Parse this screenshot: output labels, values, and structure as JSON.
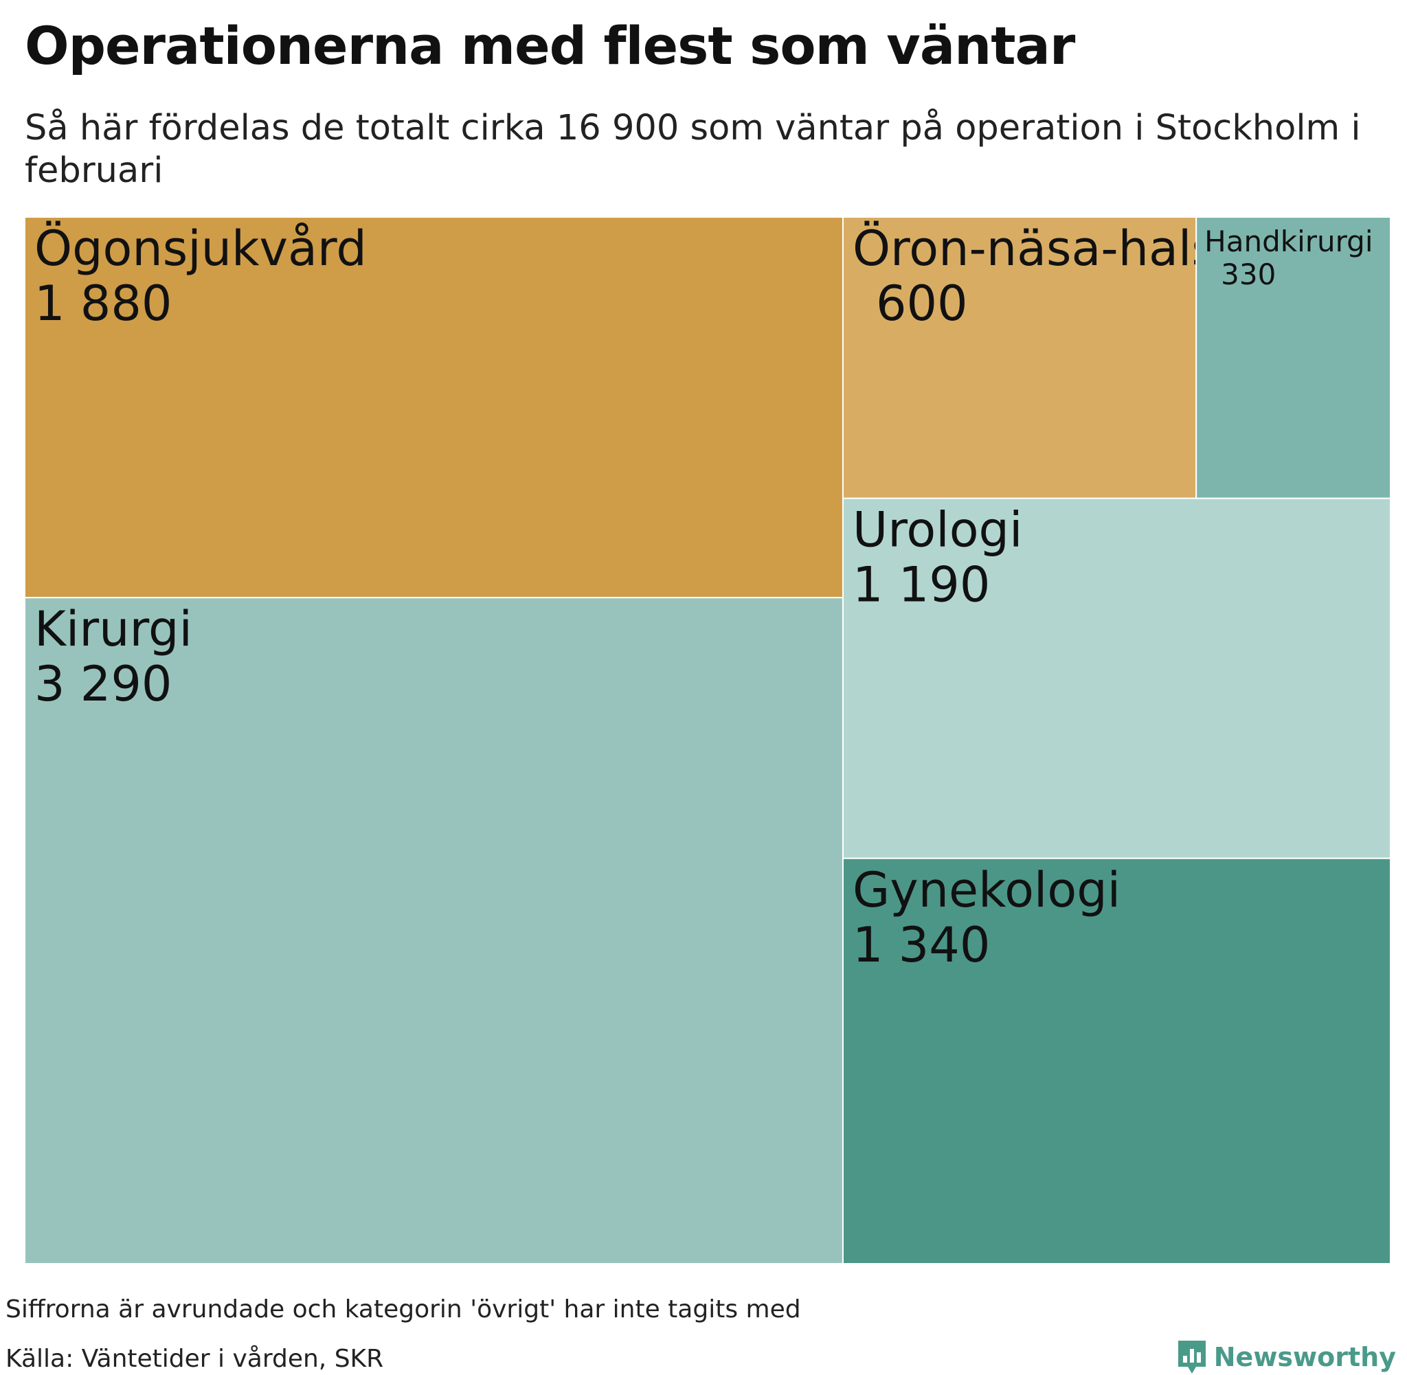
{
  "title": "Operationerna med flest som väntar",
  "subtitle": "Så här fördelas de totalt cirka 16 900 som väntar på operation i Stockholm i februari",
  "footer": {
    "note": "Siffrorna är avrundade och kategorin 'övrigt' har inte tagits med",
    "source": "Källa: Väntetider i vården, SKR",
    "brand": "Newsworthy"
  },
  "colors": {
    "ogon": "#cf9c48",
    "oron": "#d8ad63",
    "hand": "#7db5ad",
    "urologi": "#b2d6cf",
    "kirurgi": "#98c3bd",
    "gynekologi": "#4c9688",
    "brand": "#4a9a8a"
  },
  "chart_data": {
    "type": "treemap",
    "unit": "personer som väntar",
    "items": [
      {
        "name": "Ögonsjukvård",
        "value": 1880,
        "value_label": "1 880",
        "color": "#cf9c48"
      },
      {
        "name": "Kirurgi",
        "value": 3290,
        "value_label": "3 290",
        "color": "#98c3bd"
      },
      {
        "name": "Öron-näsa-hals",
        "value": 600,
        "value_label": "600",
        "color": "#d8ad63"
      },
      {
        "name": "Handkirurgi",
        "value": 330,
        "value_label": "330",
        "color": "#7db5ad"
      },
      {
        "name": "Urologi",
        "value": 1190,
        "value_label": "1 190",
        "color": "#b2d6cf"
      },
      {
        "name": "Gynekologi",
        "value": 1340,
        "value_label": "1 340",
        "color": "#4c9688"
      }
    ]
  }
}
